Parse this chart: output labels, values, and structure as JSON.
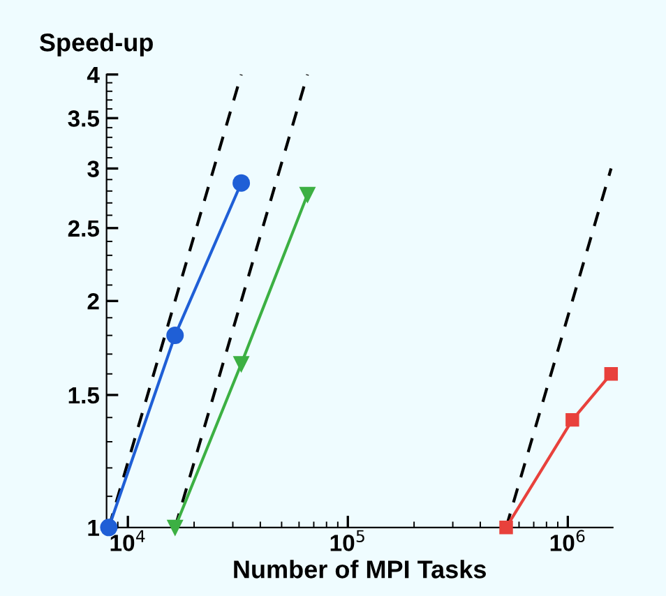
{
  "chart_data": {
    "type": "line",
    "ylabel": "Speed-up",
    "xlabel": "Number of MPI Tasks",
    "log": "xy",
    "xlim": [
      8000,
      1600000
    ],
    "ylim": [
      1,
      4
    ],
    "xticks": [
      {
        "value": 10000,
        "label": "10$^{4}$"
      },
      {
        "value": 100000,
        "label": "10$^{5}$"
      },
      {
        "value": 1000000,
        "label": "10$^{6}$"
      }
    ],
    "yticks": [
      1,
      1.5,
      2,
      2.5,
      3,
      3.5,
      4
    ],
    "grid": false,
    "legend": false,
    "series": [
      {
        "x": [
          8192,
          32768
        ],
        "values": [
          1,
          4
        ],
        "color": "#000000",
        "line_style": "dashed",
        "marker": "none"
      },
      {
        "x": [
          16384,
          65536
        ],
        "values": [
          1,
          4
        ],
        "color": "#000000",
        "line_style": "dashed",
        "marker": "none"
      },
      {
        "x": [
          524288,
          1572864
        ],
        "values": [
          1,
          3
        ],
        "color": "#000000",
        "line_style": "dashed",
        "marker": "none"
      },
      {
        "x": [
          8192,
          16384,
          32768
        ],
        "values": [
          1,
          1.8,
          2.87
        ],
        "color": "#1f5fd6",
        "line_style": "solid",
        "marker": "circle"
      },
      {
        "x": [
          16384,
          32768,
          65536
        ],
        "values": [
          1,
          1.65,
          2.77
        ],
        "color": "#3cb043",
        "line_style": "solid",
        "marker": "triangle"
      },
      {
        "x": [
          524288,
          1048576,
          1572864
        ],
        "values": [
          1,
          1.39,
          1.6
        ],
        "color": "#e8413c",
        "line_style": "solid",
        "marker": "square"
      }
    ]
  }
}
